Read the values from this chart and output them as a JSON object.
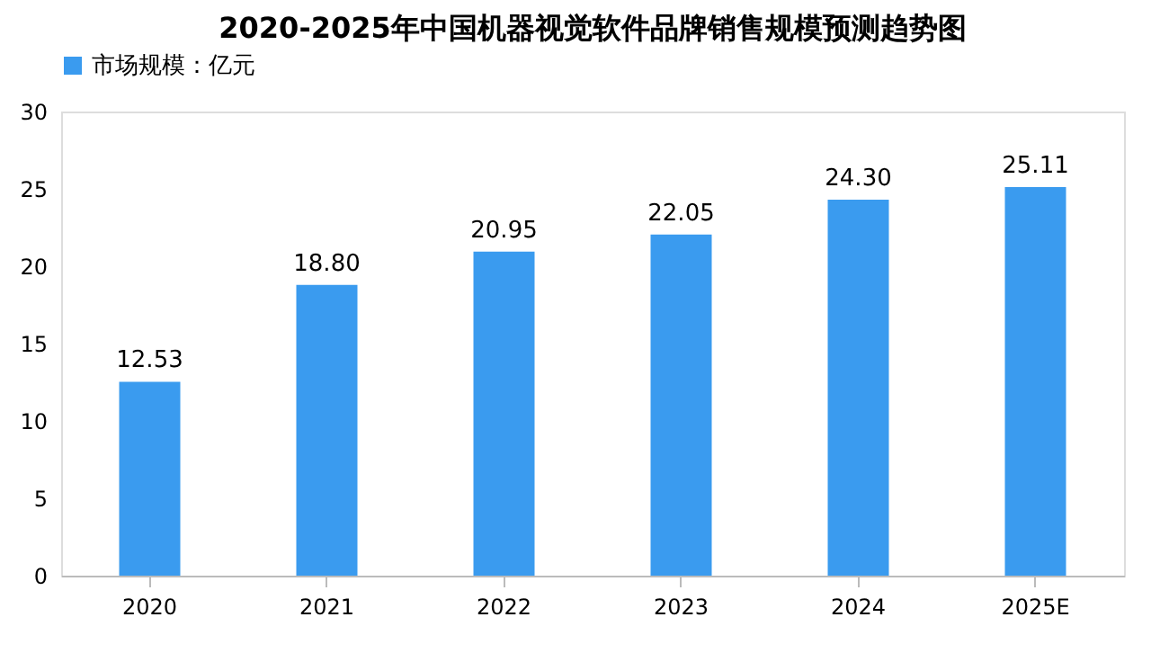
{
  "chart_data": {
    "type": "bar",
    "title": "2020-2025年中国机器视觉软件品牌销售规模预测趋势图",
    "categories": [
      "2020",
      "2021",
      "2022",
      "2023",
      "2024",
      "2025E"
    ],
    "series": [
      {
        "name": "市场规模：亿元",
        "color": "#3a9bef",
        "values": [
          12.53,
          18.8,
          20.95,
          22.05,
          24.3,
          25.11
        ]
      }
    ],
    "value_labels": [
      "12.53",
      "18.80",
      "20.95",
      "22.05",
      "24.30",
      "25.11"
    ],
    "ylim": [
      0,
      30
    ],
    "yticks": [
      0,
      5,
      10,
      15,
      20,
      25,
      30
    ],
    "grid": false,
    "legend": "top"
  }
}
